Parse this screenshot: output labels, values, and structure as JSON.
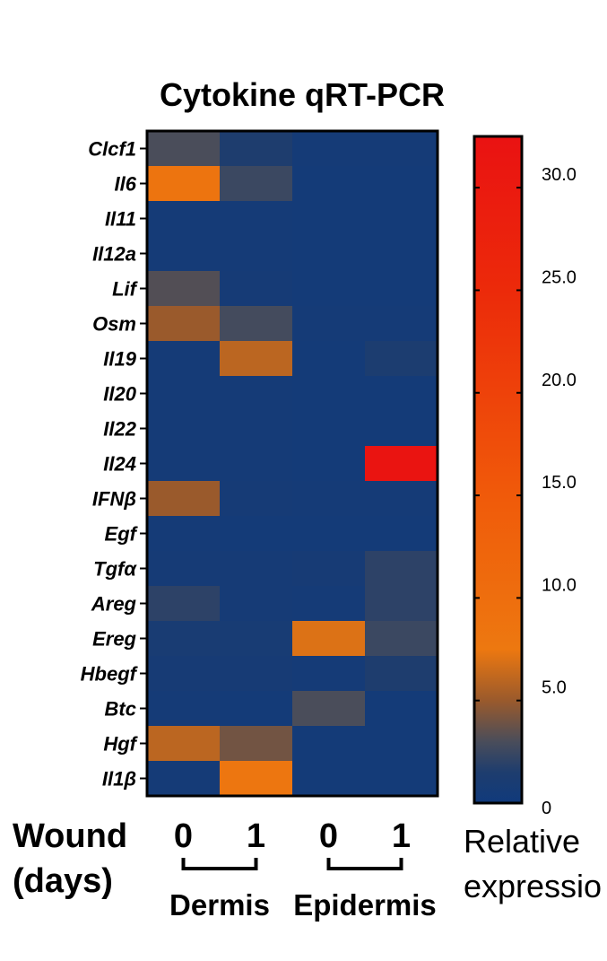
{
  "chart_data": {
    "type": "heatmap",
    "title": "Cytokine qRT-PCR",
    "rows": [
      "Clcf1",
      "Il6",
      "Il11",
      "Il12a",
      "Lif",
      "Osm",
      "Il19",
      "Il20",
      "Il22",
      "Il24",
      "IFNβ",
      "Egf",
      "Tgfα",
      "Areg",
      "Ereg",
      "Hbegf",
      "Btc",
      "Hgf",
      "Il1β"
    ],
    "columns": [
      {
        "wound_day": "0",
        "tissue": "Dermis"
      },
      {
        "wound_day": "1",
        "tissue": "Dermis"
      },
      {
        "wound_day": "0",
        "tissue": "Epidermis"
      },
      {
        "wound_day": "1",
        "tissue": "Epidermis"
      }
    ],
    "column_labels": [
      "0",
      "1",
      "0",
      "1"
    ],
    "groups": [
      {
        "label": "Dermis",
        "columns": [
          0,
          1
        ]
      },
      {
        "label": "Epidermis",
        "columns": [
          2,
          3
        ]
      }
    ],
    "x_axis_label_line1": "Wound",
    "x_axis_label_line2": "(days)",
    "values": [
      [
        3.0,
        1.5,
        0.5,
        0.5
      ],
      [
        8.5,
        2.5,
        0.4,
        0.4
      ],
      [
        0.5,
        0.5,
        0.4,
        0.4
      ],
      [
        0.5,
        0.5,
        0.4,
        0.4
      ],
      [
        3.2,
        0.6,
        0.4,
        0.4
      ],
      [
        5.0,
        2.8,
        0.5,
        0.5
      ],
      [
        0.5,
        6.0,
        0.4,
        1.3
      ],
      [
        0.5,
        0.5,
        0.4,
        0.4
      ],
      [
        0.5,
        0.5,
        0.4,
        0.4
      ],
      [
        0.5,
        0.5,
        0.4,
        32.0
      ],
      [
        5.0,
        0.6,
        0.5,
        0.5
      ],
      [
        0.5,
        0.4,
        0.4,
        0.4
      ],
      [
        0.6,
        0.6,
        0.7,
        2.0
      ],
      [
        2.0,
        0.6,
        0.5,
        2.0
      ],
      [
        1.0,
        0.9,
        7.0,
        2.5
      ],
      [
        0.7,
        0.7,
        0.5,
        1.5
      ],
      [
        0.5,
        0.4,
        3.0,
        0.4
      ],
      [
        6.0,
        4.0,
        0.4,
        0.4
      ],
      [
        0.5,
        8.0,
        0.4,
        0.4
      ]
    ],
    "colorbar": {
      "label_line1": "Relative",
      "label_line2": "expressio",
      "range": [
        0,
        32.5
      ],
      "ticks": [
        0,
        5.0,
        10.0,
        15.0,
        20.0,
        25.0,
        30.0
      ],
      "tick_labels": [
        "0",
        "5.0",
        "10.0",
        "15.0",
        "20.0",
        "25.0",
        "30.0"
      ],
      "color_stops": [
        {
          "value": 0,
          "color": "#103a7c"
        },
        {
          "value": 1.5,
          "color": "#1e3d6e"
        },
        {
          "value": 3.0,
          "color": "#4a4d5a"
        },
        {
          "value": 5.0,
          "color": "#9a5a2c"
        },
        {
          "value": 7.5,
          "color": "#ed7810"
        },
        {
          "value": 15.0,
          "color": "#f05a0a"
        },
        {
          "value": 25.0,
          "color": "#ec2a0a"
        },
        {
          "value": 32.5,
          "color": "#ea1212"
        }
      ]
    },
    "grid": false
  }
}
